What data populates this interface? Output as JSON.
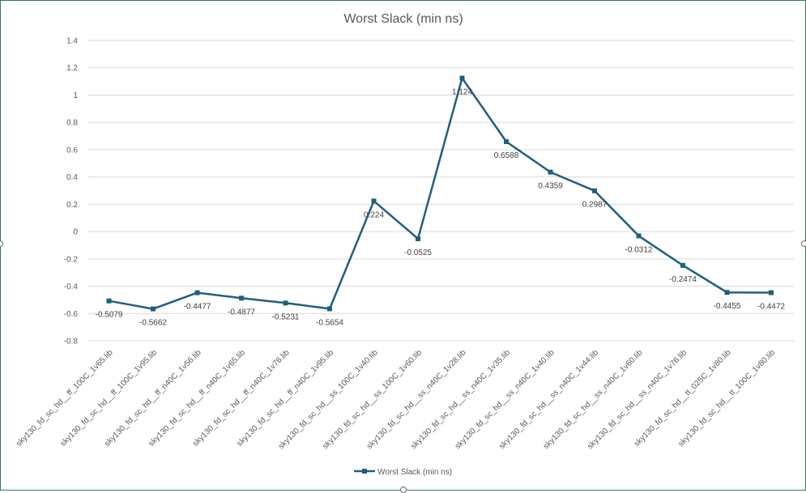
{
  "chart_data": {
    "type": "line",
    "title": "Worst Slack (min ns)",
    "xlabel": "",
    "ylabel": "",
    "ylim": [
      -0.8,
      1.4
    ],
    "yticks": [
      "1.4",
      "1.2",
      "1",
      "0.8",
      "0.6",
      "0.4",
      "0.2",
      "0",
      "-0.2",
      "-0.4",
      "-0.6",
      "-0.8"
    ],
    "grid": true,
    "legend_position": "bottom",
    "categories": [
      "sky130_fd_sc_hd__ff_100C_1v65.lib",
      "sky130_fd_sc_hd__ff_100C_1v95.lib",
      "sky130_fd_sc_hd__ff_n40C_1v56.lib",
      "sky130_fd_sc_hd__ff_n40C_1v65.lib",
      "sky130_fd_sc_hd__ff_n40C_1v76.lib",
      "sky130_fd_sc_hd__ff_n40C_1v95.lib",
      "sky130_fd_sc_hd__ss_100C_1v40.lib",
      "sky130_fd_sc_hd__ss_100C_1v60.lib",
      "sky130_fd_sc_hd__ss_n40C_1v28.lib",
      "sky130_fd_sc_hd__ss_n40C_1v35.lib",
      "sky130_fd_sc_hd__ss_n40C_1v40.lib",
      "sky130_fd_sc_hd__ss_n40C_1v44.lib",
      "sky130_fd_sc_hd__ss_n40C_1v60.lib",
      "sky130_fd_sc_hd__ss_n40C_1v76.lib",
      "sky130_fd_sc_hd__tt_025C_1v80.lib",
      "sky130_fd_sc_hd__tt_100C_1v80.lib"
    ],
    "series": [
      {
        "name": "Worst Slack (min ns)",
        "color": "#1f5f7f",
        "values": [
          -0.5079,
          -0.5662,
          -0.4477,
          -0.4877,
          -0.5231,
          -0.5654,
          0.224,
          -0.0525,
          1.124,
          0.6588,
          0.4359,
          0.2987,
          -0.0312,
          -0.2474,
          -0.4455,
          -0.4472
        ],
        "labels": [
          "-0.5079",
          "-0.5662",
          "-0.4477",
          "-0.4877",
          "-0.5231",
          "-0.5654",
          "0.224",
          "-0.0525",
          "1.124",
          "0.6588",
          "0.4359",
          "0.2987",
          "-0.0312",
          "-0.2474",
          "-0.4455",
          "-0.4472"
        ]
      }
    ]
  }
}
